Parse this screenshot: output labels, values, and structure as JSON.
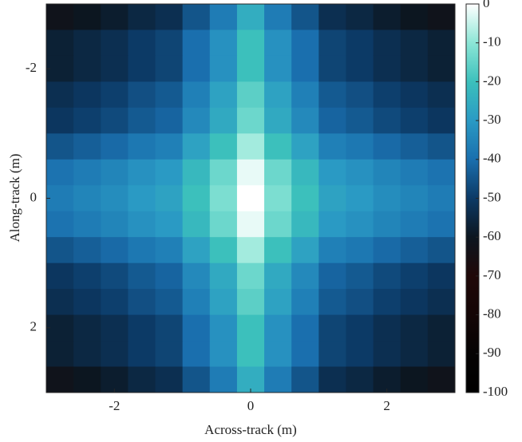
{
  "chart_data": {
    "type": "heatmap",
    "xlabel": "Across-track (m)",
    "ylabel": "Along-track (m)",
    "x": [
      -2.8,
      -2.4,
      -2.0,
      -1.6,
      -1.2,
      -0.8,
      -0.4,
      0,
      0.4,
      0.8,
      1.2,
      1.6,
      2.0,
      2.4,
      2.8
    ],
    "y": [
      -2.8,
      -2.4,
      -2.0,
      -1.6,
      -1.2,
      -0.8,
      -0.4,
      0,
      0.4,
      0.8,
      1.2,
      1.6,
      2.0,
      2.4,
      2.8
    ],
    "z": [
      [
        -62,
        -60,
        -58,
        -55,
        -53,
        -45,
        -37,
        -25,
        -37,
        -45,
        -53,
        -55,
        -58,
        -60,
        -62
      ],
      [
        -57,
        -55,
        -53,
        -50,
        -48,
        -40,
        -32,
        -20,
        -32,
        -40,
        -48,
        -50,
        -53,
        -55,
        -57
      ],
      [
        -57,
        -55,
        -53,
        -50,
        -48,
        -40,
        -32,
        -20,
        -32,
        -40,
        -48,
        -50,
        -53,
        -55,
        -57
      ],
      [
        -53,
        -51,
        -49,
        -46,
        -44,
        -36,
        -28,
        -16,
        -28,
        -36,
        -44,
        -46,
        -49,
        -51,
        -53
      ],
      [
        -51,
        -49,
        -47,
        -44,
        -42,
        -34,
        -26,
        -14,
        -26,
        -34,
        -42,
        -44,
        -47,
        -49,
        -51
      ],
      [
        -45,
        -43,
        -41,
        -38,
        -36,
        -28,
        -20,
        -8,
        -20,
        -28,
        -36,
        -38,
        -41,
        -43,
        -45
      ],
      [
        -39,
        -37,
        -35,
        -32,
        -30,
        -22,
        -14,
        -2,
        -14,
        -22,
        -30,
        -32,
        -35,
        -37,
        -39
      ],
      [
        -37,
        -35,
        -33,
        -30,
        -28,
        -20,
        -12,
        0,
        -12,
        -20,
        -28,
        -30,
        -33,
        -35,
        -37
      ],
      [
        -39,
        -37,
        -35,
        -32,
        -30,
        -22,
        -14,
        -2,
        -14,
        -22,
        -30,
        -32,
        -35,
        -37,
        -39
      ],
      [
        -45,
        -43,
        -41,
        -38,
        -36,
        -28,
        -20,
        -8,
        -20,
        -28,
        -36,
        -38,
        -41,
        -43,
        -45
      ],
      [
        -51,
        -49,
        -47,
        -44,
        -42,
        -34,
        -26,
        -14,
        -26,
        -34,
        -42,
        -44,
        -47,
        -49,
        -51
      ],
      [
        -53,
        -51,
        -49,
        -46,
        -44,
        -36,
        -28,
        -16,
        -28,
        -36,
        -44,
        -46,
        -49,
        -51,
        -53
      ],
      [
        -57,
        -55,
        -53,
        -50,
        -48,
        -40,
        -32,
        -20,
        -32,
        -40,
        -48,
        -50,
        -53,
        -55,
        -57
      ],
      [
        -57,
        -55,
        -53,
        -50,
        -48,
        -40,
        -32,
        -20,
        -32,
        -40,
        -48,
        -50,
        -53,
        -55,
        -57
      ],
      [
        -62,
        -60,
        -58,
        -55,
        -53,
        -45,
        -37,
        -25,
        -37,
        -45,
        -53,
        -55,
        -58,
        -60,
        -62
      ]
    ],
    "xlim": [
      -3,
      3
    ],
    "ylim": [
      -3,
      3
    ],
    "y_reversed": true,
    "xticks": [
      -2,
      0,
      2
    ],
    "yticks": [
      -2,
      0,
      2
    ],
    "clim": [
      -100,
      0
    ],
    "cticks": [
      0,
      -10,
      -20,
      -30,
      -40,
      -50,
      -60,
      -70,
      -80,
      -90,
      -100
    ],
    "colormap": [
      "#000000",
      "#050303",
      "#140606",
      "#200808",
      "#0c1620",
      "#0c3a66",
      "#1a6fae",
      "#2a9ac4",
      "#3cc0bc",
      "#8ce6d6",
      "#ffffff"
    ]
  }
}
